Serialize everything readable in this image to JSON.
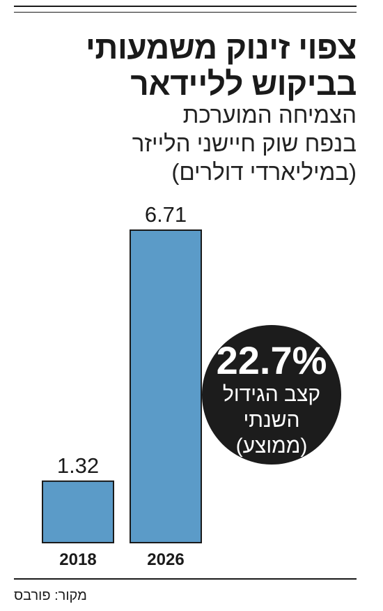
{
  "title": {
    "line1": "צפוי זינוק משמעותי",
    "line2": "בביקוש ללײדאר"
  },
  "subtitle": {
    "line1": "הצמיחה המוערכת",
    "line2": "בנפח שוק חיישני הלייזר",
    "line3": "(במיליארדי דולרים)"
  },
  "chart_data": {
    "type": "bar",
    "categories": [
      "2018",
      "2026"
    ],
    "values": [
      1.32,
      6.71
    ],
    "value_labels": [
      "1.32",
      "6.71"
    ],
    "ylim": [
      0,
      6.71
    ],
    "bar_color": "#5b9bc8",
    "callout": {
      "value": "22.7%",
      "line1": "קצב הגידול",
      "line2": "השנתי",
      "line3": "(ממוצע)",
      "color": "#1c1c1c"
    }
  },
  "source": "מקור: פורבס"
}
